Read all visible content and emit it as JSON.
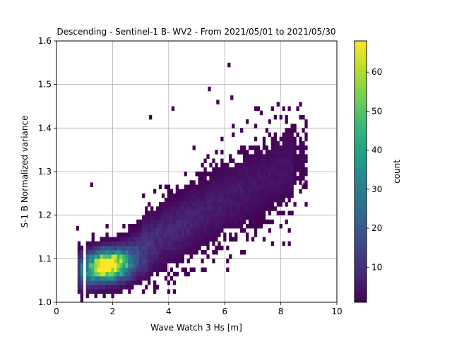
{
  "chart_data": {
    "type": "heatmap",
    "title": "Descending - Sentinel-1 B- WV2 - From 2021/05/01 to 2021/05/30",
    "xlabel": "Wave Watch 3 Hs [m]",
    "ylabel": "S-1 B Normalized variance",
    "xlim": [
      0,
      10
    ],
    "ylim": [
      1.0,
      1.6
    ],
    "xticks": [
      "0",
      "2",
      "4",
      "6",
      "8",
      "10"
    ],
    "yticks": [
      "1.0",
      "1.1",
      "1.2",
      "1.3",
      "1.4",
      "1.5",
      "1.6"
    ],
    "grid": true,
    "colormap": "viridis",
    "colorbar": {
      "label": "count",
      "range": [
        1,
        68
      ],
      "ticks": [
        "10",
        "20",
        "30",
        "40",
        "50",
        "60"
      ]
    },
    "density_model": {
      "description_note": "2D histogram of collocated points",
      "bin_width_x": 0.1,
      "bin_height_y": 0.01,
      "peak": {
        "x": 1.8,
        "y": 1.085,
        "count": 68
      },
      "trend": {
        "x0": 1.8,
        "y0": 1.085,
        "slope": 0.035
      },
      "outliers": [
        {
          "x": 6.15,
          "y": 1.545,
          "count": 1
        },
        {
          "x": 5.45,
          "y": 1.49,
          "count": 1
        },
        {
          "x": 6.25,
          "y": 1.47,
          "count": 1
        },
        {
          "x": 5.75,
          "y": 1.46,
          "count": 1
        },
        {
          "x": 4.15,
          "y": 1.445,
          "count": 1
        },
        {
          "x": 8.85,
          "y": 1.27,
          "count": 1
        },
        {
          "x": 1.25,
          "y": 1.27,
          "count": 1
        },
        {
          "x": 0.75,
          "y": 1.17,
          "count": 1
        },
        {
          "x": 8.35,
          "y": 1.395,
          "count": 1
        },
        {
          "x": 3.35,
          "y": 1.425,
          "count": 1
        }
      ]
    }
  },
  "colors": {
    "viridis": [
      "#440154",
      "#482878",
      "#3e4989",
      "#31688e",
      "#26828e",
      "#1f9e89",
      "#35b779",
      "#6ece58",
      "#b5de2b",
      "#fde725"
    ],
    "grid": "#b0b0b0",
    "axis": "#000000"
  }
}
